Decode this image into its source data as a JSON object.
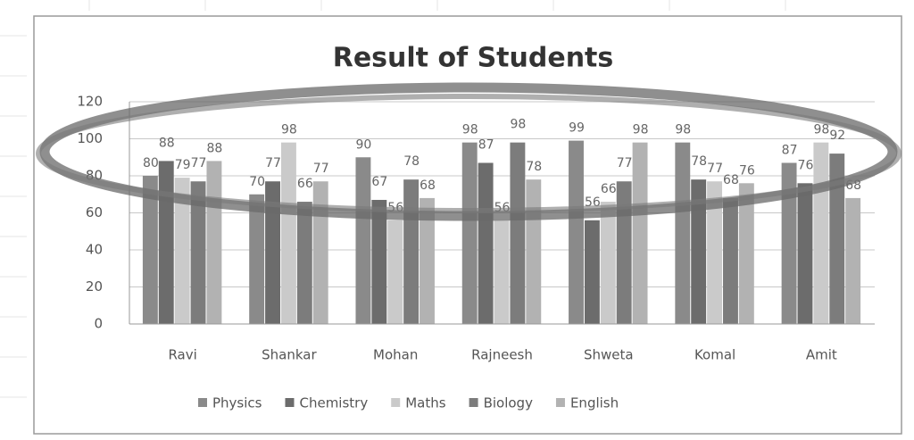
{
  "chart_data": {
    "type": "bar",
    "title": "Result  of Students",
    "categories": [
      "Ravi",
      "Shankar",
      "Mohan",
      "Rajneesh",
      "Shweta",
      "Komal",
      "Amit"
    ],
    "series": [
      {
        "name": "Physics",
        "color": "#8a8a8a",
        "values": [
          80,
          70,
          90,
          98,
          99,
          98,
          87
        ]
      },
      {
        "name": "Chemistry",
        "color": "#6c6c6c",
        "values": [
          88,
          77,
          67,
          87,
          56,
          78,
          76
        ]
      },
      {
        "name": "Maths",
        "color": "#cacaca",
        "values": [
          79,
          98,
          56,
          56,
          66,
          77,
          98
        ]
      },
      {
        "name": "Biology",
        "color": "#7c7c7c",
        "values": [
          77,
          66,
          78,
          98,
          77,
          68,
          92
        ]
      },
      {
        "name": "English",
        "color": "#b2b2b2",
        "values": [
          88,
          77,
          68,
          78,
          98,
          76,
          68
        ]
      }
    ],
    "ylim": [
      0,
      120
    ],
    "yticks": [
      0,
      20,
      40,
      60,
      80,
      100,
      120
    ],
    "grid": true,
    "legend": "bottom"
  }
}
